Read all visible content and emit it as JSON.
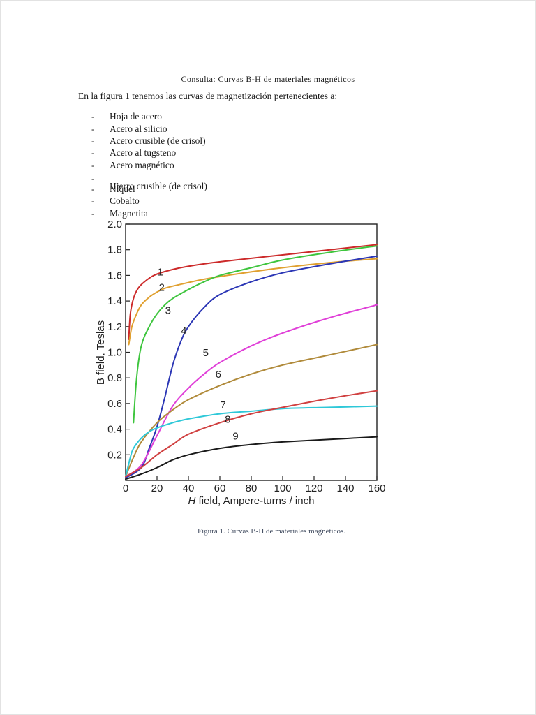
{
  "document": {
    "title": "Consulta: Curvas B-H  de materiales magnéticos",
    "intro": "En la figura 1 tenemos las curvas de magnetización pertenecientes a:",
    "bullet_marker": "-",
    "bullets": [
      "Hoja de acero",
      "Acero al silicio",
      "Acero crusible (de crisol)",
      "Acero al tugsteno",
      "Acero magnético",
      "Hierro crusible (de crisol)",
      "Níquel",
      "Cobalto",
      "Magnetita"
    ],
    "caption": "Figura 1. Curvas B-H de materiales magnéticos."
  },
  "chart_data": {
    "type": "line",
    "xlabel": "H field, Ampere-turns / inch",
    "xlabel_italic_part": "H",
    "xlabel_rest": " field, Ampere-turns / inch",
    "ylabel": "B field, Teslas",
    "xlim": [
      0,
      160
    ],
    "ylim": [
      0,
      2.0
    ],
    "x_ticks": [
      "0",
      "20",
      "40",
      "60",
      "80",
      "100",
      "120",
      "140",
      "160"
    ],
    "y_ticks": [
      "0.2",
      "0.4",
      "0.6",
      "0.8",
      "1.0",
      "1.2",
      "1.4",
      "1.6",
      "1.8",
      "2.0"
    ],
    "grid": false,
    "legend": "none",
    "series": [
      {
        "name": "1",
        "color": "#cc2a2a",
        "x": [
          2,
          3,
          5,
          8,
          12,
          18,
          25,
          35,
          50,
          70,
          100,
          130,
          160
        ],
        "y": [
          1.1,
          1.3,
          1.42,
          1.5,
          1.55,
          1.6,
          1.63,
          1.66,
          1.69,
          1.72,
          1.76,
          1.8,
          1.84
        ]
      },
      {
        "name": "2",
        "color": "#e0a030",
        "x": [
          2,
          4,
          7,
          10,
          15,
          20,
          25,
          35,
          50,
          70,
          100,
          130,
          160
        ],
        "y": [
          1.06,
          1.2,
          1.3,
          1.37,
          1.43,
          1.47,
          1.5,
          1.53,
          1.57,
          1.61,
          1.66,
          1.7,
          1.73
        ]
      },
      {
        "name": "3",
        "color": "#3ec53e",
        "x": [
          5,
          7,
          10,
          15,
          20,
          25,
          30,
          40,
          50,
          60,
          80,
          100,
          130,
          160
        ],
        "y": [
          0.45,
          0.8,
          1.05,
          1.2,
          1.3,
          1.37,
          1.42,
          1.49,
          1.55,
          1.6,
          1.66,
          1.72,
          1.78,
          1.83
        ]
      },
      {
        "name": "4",
        "color": "#2b36b5",
        "x": [
          0,
          10,
          15,
          20,
          25,
          30,
          35,
          40,
          50,
          60,
          80,
          100,
          130,
          160
        ],
        "y": [
          0.02,
          0.1,
          0.25,
          0.42,
          0.65,
          0.9,
          1.08,
          1.2,
          1.35,
          1.45,
          1.55,
          1.62,
          1.69,
          1.75
        ]
      },
      {
        "name": "5",
        "color": "#e040d8",
        "x": [
          0,
          10,
          20,
          30,
          40,
          50,
          60,
          80,
          100,
          130,
          160
        ],
        "y": [
          0.03,
          0.12,
          0.35,
          0.58,
          0.72,
          0.83,
          0.92,
          1.05,
          1.15,
          1.27,
          1.37
        ]
      },
      {
        "name": "6",
        "color": "#b08a3a",
        "x": [
          0,
          5,
          10,
          20,
          30,
          40,
          60,
          80,
          100,
          130,
          160
        ],
        "y": [
          0.03,
          0.18,
          0.3,
          0.45,
          0.55,
          0.63,
          0.74,
          0.83,
          0.9,
          0.98,
          1.06
        ]
      },
      {
        "name": "7",
        "color": "#2ec8d8",
        "x": [
          0,
          3,
          5,
          10,
          15,
          20,
          30,
          40,
          60,
          80,
          100,
          130,
          160
        ],
        "y": [
          0.03,
          0.18,
          0.25,
          0.33,
          0.38,
          0.41,
          0.45,
          0.48,
          0.52,
          0.54,
          0.56,
          0.57,
          0.58
        ]
      },
      {
        "name": "8",
        "color": "#d04040",
        "x": [
          0,
          10,
          20,
          30,
          40,
          60,
          80,
          100,
          130,
          160
        ],
        "y": [
          0.03,
          0.1,
          0.2,
          0.28,
          0.36,
          0.45,
          0.52,
          0.57,
          0.64,
          0.7
        ]
      },
      {
        "name": "9",
        "color": "#1a1a1a",
        "x": [
          0,
          10,
          20,
          30,
          40,
          60,
          80,
          100,
          130,
          160
        ],
        "y": [
          0.01,
          0.05,
          0.1,
          0.16,
          0.2,
          0.25,
          0.28,
          0.3,
          0.32,
          0.34
        ]
      }
    ],
    "curve_labels": [
      {
        "text": "1",
        "x": 22,
        "y": 1.6
      },
      {
        "text": "2",
        "x": 23,
        "y": 1.48
      },
      {
        "text": "3",
        "x": 27,
        "y": 1.3
      },
      {
        "text": "4",
        "x": 37,
        "y": 1.14
      },
      {
        "text": "5",
        "x": 51,
        "y": 0.97
      },
      {
        "text": "6",
        "x": 59,
        "y": 0.8
      },
      {
        "text": "7",
        "x": 62,
        "y": 0.56
      },
      {
        "text": "8",
        "x": 65,
        "y": 0.45
      },
      {
        "text": "9",
        "x": 70,
        "y": 0.32
      }
    ]
  }
}
